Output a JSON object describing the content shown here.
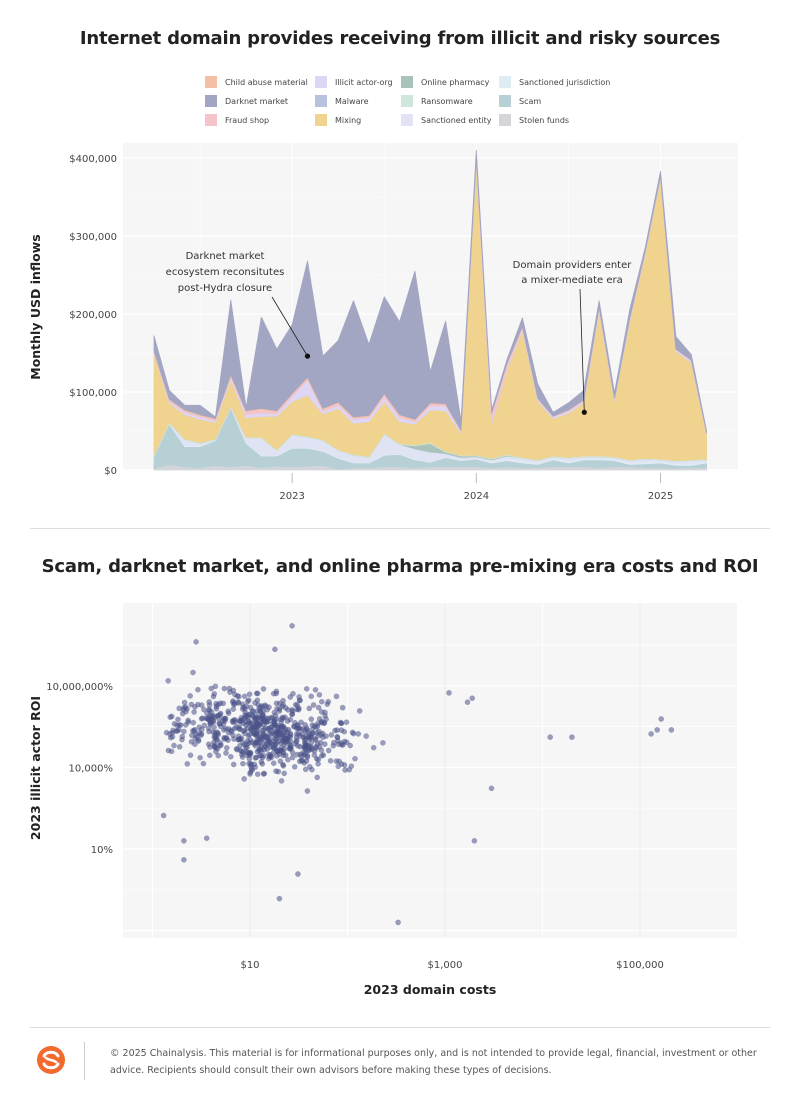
{
  "chart_data": [
    {
      "type": "area",
      "stacked": true,
      "title": "Internet domain provides receiving from illicit and risky sources",
      "xlabel": "",
      "ylabel": "Monthly USD inflows",
      "ylim": [
        0,
        410000
      ],
      "yticks": [
        {
          "value": 0,
          "label": "$0"
        },
        {
          "value": 100000,
          "label": "$100,000"
        },
        {
          "value": 200000,
          "label": "$200,000"
        },
        {
          "value": 300000,
          "label": "$300,000"
        },
        {
          "value": 400000,
          "label": "$400,000"
        }
      ],
      "xticks": [
        {
          "index": 9,
          "label": "2023"
        },
        {
          "index": 21,
          "label": "2024"
        },
        {
          "index": 33,
          "label": "2025"
        }
      ],
      "grid": true,
      "legend_position": "top",
      "x": [
        "2022-04",
        "2022-05",
        "2022-06",
        "2022-07",
        "2022-08",
        "2022-09",
        "2022-10",
        "2022-11",
        "2022-12",
        "2023-01",
        "2023-02",
        "2023-03",
        "2023-04",
        "2023-05",
        "2023-06",
        "2023-07",
        "2023-08",
        "2023-09",
        "2023-10",
        "2023-11",
        "2023-12",
        "2024-01",
        "2024-02",
        "2024-03",
        "2024-04",
        "2024-05",
        "2024-06",
        "2024-07",
        "2024-08",
        "2024-09",
        "2024-10",
        "2024-11",
        "2024-12",
        "2025-01",
        "2025-02",
        "2025-03",
        "2025-04"
      ],
      "series": [
        {
          "name": "Stolen funds",
          "color": "#d3d5da",
          "values": [
            2000,
            7000,
            4000,
            3000,
            6000,
            4000,
            6000,
            3000,
            5000,
            4000,
            5000,
            6000,
            1000,
            3000,
            3000,
            4000,
            4000,
            3000,
            4000,
            4000,
            4000,
            4000,
            3000,
            4000,
            3000,
            3000,
            4000,
            4000,
            4000,
            3000,
            4000,
            4000,
            3000,
            3000,
            2000,
            3000,
            3000
          ]
        },
        {
          "name": "Scam",
          "color": "#b7d0d5",
          "values": [
            16000,
            52000,
            26000,
            27000,
            32000,
            76000,
            28000,
            15000,
            13000,
            24000,
            23000,
            18000,
            14000,
            6000,
            6000,
            15000,
            16000,
            10000,
            6000,
            12000,
            8000,
            10000,
            6000,
            8000,
            6000,
            4000,
            9000,
            5000,
            9000,
            10000,
            8000,
            3000,
            5000,
            6000,
            4000,
            3000,
            6000
          ]
        },
        {
          "name": "Sanctioned jurisdiction",
          "color": "#e0ecf4",
          "values": [
            1000,
            1000,
            1000,
            1000,
            1000,
            1000,
            1000,
            1000,
            1000,
            1000,
            1000,
            1000,
            1000,
            1000,
            1000,
            1000,
            1000,
            1000,
            1000,
            1000,
            1000,
            1000,
            2000,
            2000,
            2000,
            2000,
            2000,
            2000,
            2000,
            2000,
            2000,
            2000,
            2000,
            2000,
            2000,
            2000,
            2000
          ]
        },
        {
          "name": "Sanctioned entity",
          "color": "#dfe3f3",
          "values": [
            0,
            0,
            8000,
            3000,
            0,
            0,
            6000,
            22000,
            6000,
            16000,
            13000,
            13000,
            9000,
            9000,
            6000,
            26000,
            12000,
            13000,
            12000,
            4000,
            3000,
            2000,
            2000,
            4000,
            4000,
            3000,
            2000,
            4000,
            2000,
            2000,
            2000,
            3000,
            4000,
            2000,
            3000,
            4000,
            2000
          ]
        },
        {
          "name": "Online pharmacy",
          "color": "#a9c3bb",
          "values": [
            0,
            0,
            0,
            0,
            0,
            0,
            0,
            0,
            0,
            0,
            0,
            0,
            0,
            0,
            0,
            0,
            0,
            4000,
            11000,
            2000,
            2000,
            1000,
            1000,
            1000,
            0,
            0,
            0,
            0,
            0,
            0,
            0,
            0,
            0,
            0,
            0,
            0,
            0
          ]
        },
        {
          "name": "Ransomware",
          "color": "#cfe6dc",
          "values": [
            1000,
            1000,
            1000,
            1000,
            1000,
            1000,
            1000,
            1000,
            1000,
            1000,
            1000,
            1000,
            1000,
            1000,
            1000,
            1000,
            1000,
            1000,
            1000,
            1000,
            1000,
            1000,
            1000,
            1000,
            1000,
            1000,
            1000,
            1000,
            1000,
            1000,
            1000,
            1000,
            1000,
            1000,
            1000,
            1000,
            1000
          ]
        },
        {
          "name": "Mixing",
          "color": "#efd38f",
          "values": [
            130000,
            25000,
            31000,
            30000,
            21000,
            34000,
            25000,
            27000,
            43000,
            42000,
            53000,
            33000,
            53000,
            40000,
            45000,
            41000,
            28000,
            27000,
            42000,
            52000,
            28000,
            378000,
            44000,
            109000,
            163000,
            75000,
            48000,
            57000,
            68000,
            187000,
            72000,
            178000,
            262000,
            360000,
            140000,
            125000,
            32000
          ]
        },
        {
          "name": "Malware",
          "color": "#b8c1de",
          "values": [
            0,
            0,
            0,
            0,
            0,
            0,
            0,
            0,
            0,
            0,
            0,
            0,
            0,
            0,
            0,
            0,
            0,
            0,
            0,
            0,
            0,
            0,
            0,
            0,
            0,
            0,
            0,
            0,
            0,
            0,
            0,
            0,
            0,
            0,
            0,
            0,
            0
          ]
        },
        {
          "name": "Illicit actor-org",
          "color": "#ddd6f5",
          "values": [
            1000,
            2000,
            3000,
            3000,
            2000,
            3000,
            4000,
            4000,
            3000,
            6000,
            19000,
            3000,
            4000,
            5000,
            5000,
            5000,
            5000,
            3000,
            5000,
            6000,
            2000,
            2000,
            2000,
            2000,
            2000,
            2000,
            2000,
            2000,
            2000,
            2000,
            2000,
            2000,
            2000,
            2000,
            2000,
            2000,
            1000
          ]
        },
        {
          "name": "Fraud shop",
          "color": "#f3c4c9",
          "values": [
            1000,
            2000,
            2000,
            2000,
            2000,
            2000,
            4000,
            5000,
            3000,
            3000,
            3000,
            3000,
            3000,
            2000,
            2000,
            4000,
            3000,
            2000,
            3000,
            2000,
            1000,
            1000,
            12000,
            6000,
            3000,
            2000,
            1000,
            2000,
            2000,
            2000,
            1000,
            2000,
            1000,
            1000,
            1000,
            1000,
            1000
          ]
        },
        {
          "name": "Child abuse material",
          "color": "#f4bfa2",
          "values": [
            1000,
            1000,
            1000,
            1000,
            1000,
            1000,
            1000,
            1000,
            1000,
            1000,
            1000,
            1000,
            1000,
            1000,
            1000,
            1000,
            1000,
            1000,
            1000,
            1000,
            1000,
            0,
            0,
            0,
            0,
            0,
            0,
            0,
            0,
            0,
            0,
            0,
            0,
            0,
            0,
            0,
            0
          ]
        },
        {
          "name": "Darknet market",
          "color": "#a3a6c2",
          "values": [
            19000,
            11000,
            6000,
            12000,
            2000,
            96000,
            4000,
            117000,
            79000,
            88000,
            149000,
            67000,
            79000,
            149000,
            91000,
            124000,
            119000,
            190000,
            40000,
            106000,
            12000,
            10000,
            4000,
            5000,
            11000,
            18000,
            5000,
            9000,
            12000,
            8000,
            7000,
            11000,
            5000,
            6000,
            16000,
            7000,
            2000
          ]
        }
      ],
      "annotations": [
        {
          "text": [
            "Darknet market",
            "ecosystem reconsitutes",
            "post-Hydra closure"
          ],
          "point_index": 10,
          "point_value": 146000
        },
        {
          "text": [
            "Domain providers enter",
            "a mixer-mediate era"
          ],
          "point_index": 28,
          "point_value": 74000
        }
      ]
    },
    {
      "type": "scatter",
      "title": "Scam, darknet market, and online pharma pre-mixing era costs and ROI",
      "xlabel": "2023 domain costs",
      "ylabel": "2023 illicit actor ROI",
      "x_scale": "log",
      "y_scale": "log",
      "xlim": [
        0.9,
        1000000
      ],
      "ylim": [
        0.004,
        2000000000
      ],
      "xticks": [
        {
          "value": 10,
          "label": "$10"
        },
        {
          "value": 1000,
          "label": "$1,000"
        },
        {
          "value": 100000,
          "label": "$100,000"
        }
      ],
      "yticks": [
        {
          "value": 10,
          "label": "10%"
        },
        {
          "value": 10000,
          "label": "10,000%"
        },
        {
          "value": 10000000,
          "label": "10,000,000%"
        }
      ],
      "grid": true,
      "point_color": "#4a5288",
      "n_points_approx": 700,
      "seed": 7,
      "outliers": [
        {
          "x": 27,
          "y": 1600000000
        },
        {
          "x": 2.8,
          "y": 410000000
        },
        {
          "x": 18,
          "y": 220000000
        },
        {
          "x": 2.1,
          "y": 20
        },
        {
          "x": 2.1,
          "y": 4
        },
        {
          "x": 1.3,
          "y": 170
        },
        {
          "x": 3.6,
          "y": 25
        },
        {
          "x": 31,
          "y": 1.2
        },
        {
          "x": 20,
          "y": 0.15
        },
        {
          "x": 330,
          "y": 0.02
        },
        {
          "x": 2000,
          "y": 20
        },
        {
          "x": 3000,
          "y": 1700
        },
        {
          "x": 12000,
          "y": 130000
        },
        {
          "x": 20000,
          "y": 130000
        },
        {
          "x": 130000,
          "y": 170000
        },
        {
          "x": 150000,
          "y": 240000
        },
        {
          "x": 165000,
          "y": 600000
        },
        {
          "x": 210000,
          "y": 240000
        },
        {
          "x": 1700,
          "y": 2500000
        },
        {
          "x": 1900,
          "y": 3500000
        },
        {
          "x": 1100,
          "y": 5500000
        }
      ]
    }
  ],
  "footer": {
    "text": "© 2025 Chainalysis. This material is for informational purposes only, and is not intended to provide legal, financial, investment or other advice. Recipients should consult their own advisors before making these types of decisions.",
    "logo": "chainalysis-logo-icon",
    "logo_color": "#f26a2e"
  }
}
